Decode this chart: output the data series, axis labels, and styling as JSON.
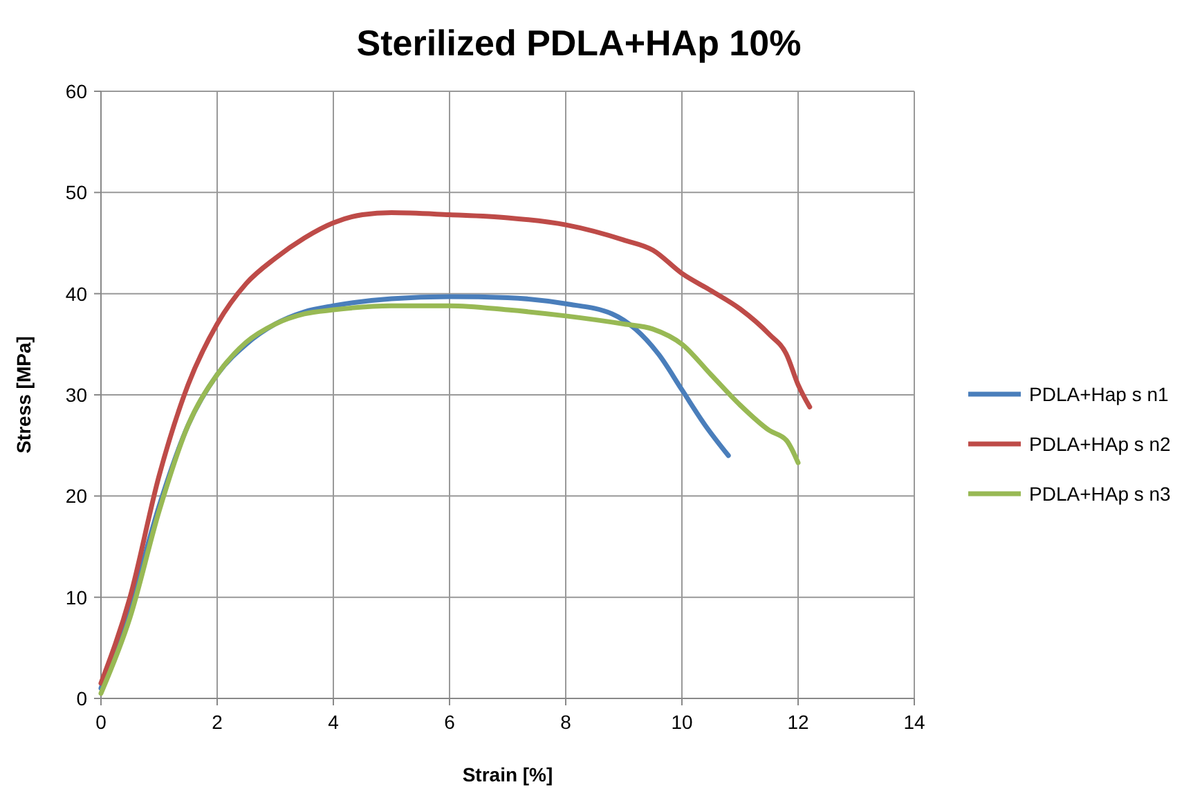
{
  "chart_data": {
    "type": "line",
    "title": "Sterilized PDLA+HAp 10%",
    "xlabel": "Strain [%]",
    "ylabel": "Stress [MPa]",
    "xlim": [
      0,
      14
    ],
    "ylim": [
      0,
      60
    ],
    "xticks": [
      0,
      2,
      4,
      6,
      8,
      10,
      12,
      14
    ],
    "yticks": [
      0,
      10,
      20,
      30,
      40,
      50,
      60
    ],
    "grid": true,
    "legend": "right",
    "marker": "none",
    "series": [
      {
        "name": "PDLA+Hap s n1",
        "color": "#4a7ebb",
        "x": [
          0,
          0.5,
          1,
          1.5,
          2,
          2.5,
          3,
          3.5,
          4,
          5,
          6,
          7,
          8,
          8.8,
          9.2,
          9.6,
          10,
          10.4,
          10.8
        ],
        "values": [
          1,
          9,
          19,
          27,
          32,
          35,
          37,
          38.2,
          38.8,
          39.5,
          39.7,
          39.6,
          39,
          38,
          36.5,
          34,
          30.5,
          27,
          24
        ]
      },
      {
        "name": "PDLA+HAp s n2",
        "color": "#be4b48",
        "x": [
          0,
          0.5,
          1,
          1.5,
          2,
          2.5,
          3,
          3.5,
          4,
          4.5,
          5,
          6,
          7,
          8,
          9,
          9.5,
          10,
          10.5,
          11,
          11.5,
          11.8,
          12,
          12.2
        ],
        "values": [
          1.5,
          10,
          22,
          31,
          37,
          41,
          43.5,
          45.5,
          47,
          47.8,
          48,
          47.8,
          47.5,
          46.8,
          45.3,
          44.3,
          42,
          40.3,
          38.5,
          36,
          34,
          31,
          28.8
        ]
      },
      {
        "name": "PDLA+HAp s n3",
        "color": "#98b954",
        "x": [
          0,
          0.5,
          1,
          1.5,
          2,
          2.5,
          3,
          3.5,
          4,
          5,
          6,
          7,
          8,
          9,
          9.5,
          10,
          10.5,
          11,
          11.5,
          11.8,
          12
        ],
        "values": [
          0.5,
          8,
          18.5,
          27,
          32,
          35.2,
          37,
          38,
          38.4,
          38.8,
          38.8,
          38.4,
          37.8,
          37,
          36.5,
          35,
          32,
          29,
          26.5,
          25.5,
          23.3
        ]
      }
    ]
  }
}
